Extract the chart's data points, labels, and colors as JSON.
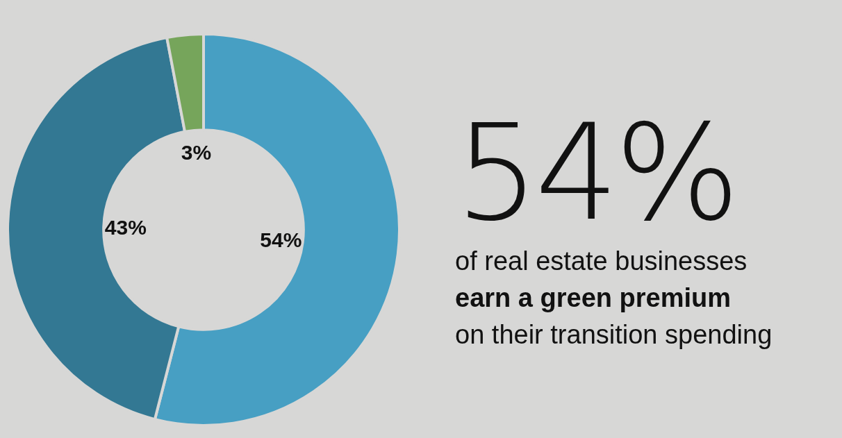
{
  "chart_data": {
    "type": "donut",
    "categories": [
      null,
      null,
      null
    ],
    "values": [
      54,
      43,
      3
    ],
    "colors": [
      "#479fc3",
      "#337893",
      "#76a55b"
    ],
    "value_labels": [
      "54%",
      "43%",
      "3%"
    ],
    "annotations": [
      "54%",
      "of real estate businesses",
      "earn a green premium",
      "on their transition spending"
    ]
  }
}
